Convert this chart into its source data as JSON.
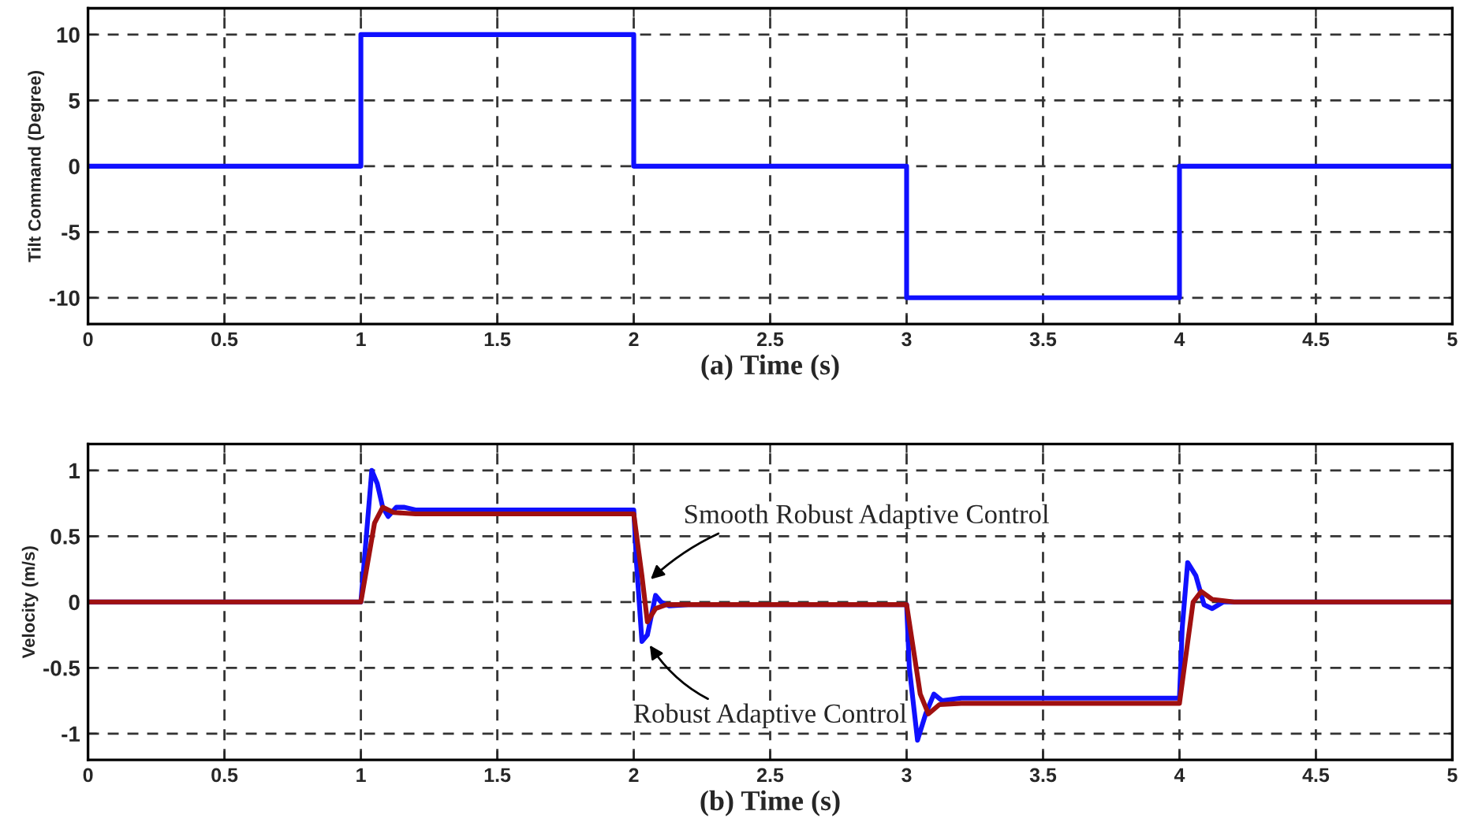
{
  "chart_data": [
    {
      "type": "line",
      "xlabel": "(a) Time (s)",
      "ylabel": "Tilt Command (Degree)",
      "xlim": [
        0,
        5
      ],
      "ylim": [
        -12,
        12
      ],
      "xticks": [
        0,
        0.5,
        1,
        1.5,
        2,
        2.5,
        3,
        3.5,
        4,
        4.5,
        5
      ],
      "yticks": [
        -10,
        -5,
        0,
        5,
        10
      ],
      "grid": true,
      "line_style": "solid",
      "series": [
        {
          "color": "#1010ff",
          "x": [
            0,
            1,
            1,
            2,
            2,
            3,
            3,
            4,
            4,
            5
          ],
          "values": [
            0,
            0,
            10,
            10,
            0,
            0,
            -10,
            -10,
            0,
            0
          ]
        }
      ]
    },
    {
      "type": "line",
      "xlabel": "(b) Time (s)",
      "ylabel": "Velocity (m/s)",
      "xlim": [
        0,
        5
      ],
      "ylim": [
        -1.2,
        1.2
      ],
      "xticks": [
        0,
        0.5,
        1,
        1.5,
        2,
        2.5,
        3,
        3.5,
        4,
        4.5,
        5
      ],
      "yticks": [
        -1,
        -0.5,
        0,
        0.5,
        1
      ],
      "grid": true,
      "line_style": "solid",
      "series": [
        {
          "color": "#1010ff",
          "x": [
            0,
            1,
            1.02,
            1.04,
            1.06,
            1.08,
            1.1,
            1.13,
            1.16,
            1.2,
            2,
            2.01,
            2.03,
            2.05,
            2.08,
            2.1,
            2.13,
            2.2,
            3,
            3.01,
            3.04,
            3.07,
            3.1,
            3.13,
            3.2,
            4,
            4.01,
            4.03,
            4.06,
            4.09,
            4.12,
            4.16,
            5
          ],
          "values": [
            0,
            0,
            0.5,
            1.0,
            0.9,
            0.72,
            0.65,
            0.72,
            0.72,
            0.7,
            0.7,
            0.3,
            -0.3,
            -0.25,
            0.05,
            0.0,
            -0.03,
            -0.02,
            -0.02,
            -0.5,
            -1.05,
            -0.85,
            -0.7,
            -0.75,
            -0.73,
            -0.73,
            -0.2,
            0.3,
            0.2,
            -0.02,
            -0.05,
            0.0,
            0
          ]
        },
        {
          "color": "#a01010",
          "x": [
            0,
            1,
            1.05,
            1.08,
            1.12,
            1.2,
            2,
            2.03,
            2.05,
            2.08,
            2.12,
            3,
            3.05,
            3.08,
            3.12,
            3.2,
            4,
            4.05,
            4.08,
            4.12,
            4.2,
            5
          ],
          "values": [
            0,
            0,
            0.6,
            0.72,
            0.68,
            0.67,
            0.67,
            0.2,
            -0.15,
            -0.05,
            -0.02,
            -0.02,
            -0.7,
            -0.85,
            -0.78,
            -0.77,
            -0.77,
            0.0,
            0.08,
            0.02,
            0,
            0
          ]
        }
      ],
      "annotations": [
        {
          "text": "Smooth Robust Adaptive Control",
          "x": 2.05,
          "y": 0.15
        },
        {
          "text": "Robust Adaptive Control",
          "x": 2.05,
          "y": -0.3
        }
      ]
    }
  ]
}
